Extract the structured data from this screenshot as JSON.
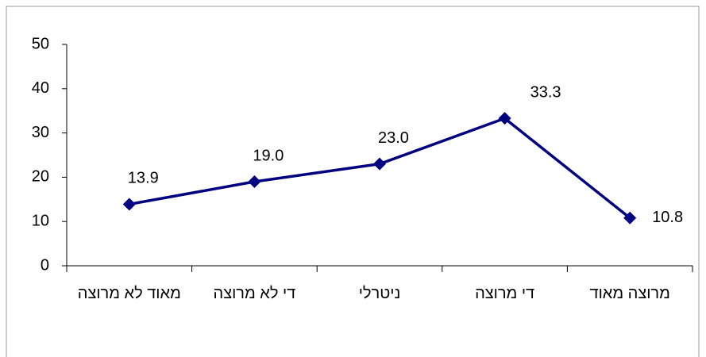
{
  "chart_data": {
    "type": "line",
    "categories": [
      "מאוד לא מרוצה",
      "די לא מרוצה",
      "ניטרלי",
      "די מרוצה",
      "מרוצה מאוד"
    ],
    "values": [
      13.9,
      19.0,
      23.0,
      33.3,
      10.8
    ],
    "value_labels": [
      "13.9",
      "19.0",
      "23.0",
      "33.3",
      "10.8"
    ],
    "color": "#000080",
    "ylim": [
      0,
      50
    ],
    "yticks": [
      0,
      10,
      20,
      30,
      40,
      50
    ],
    "grid": false
  }
}
